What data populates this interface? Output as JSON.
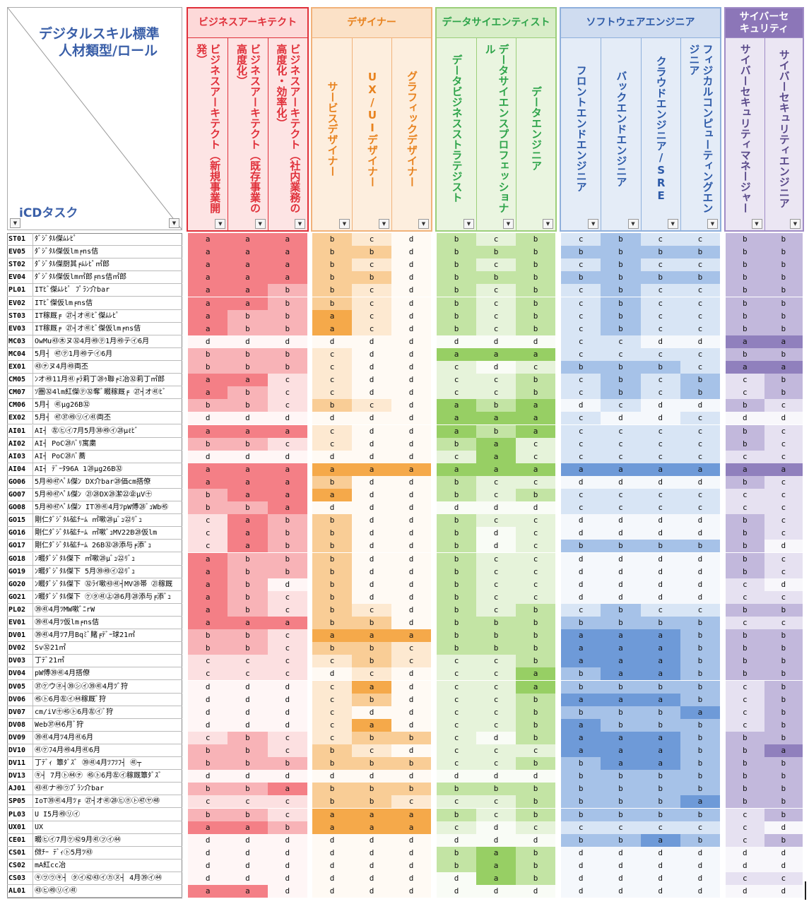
{
  "corner": {
    "title_line1": "デジタルスキル標準",
    "title_line2": "人材類型/ロール",
    "row_label": "iCDタスク"
  },
  "groups": [
    {
      "name": "ビジネスアーキテクト",
      "color": "#e0303a",
      "head_bg": "#fde4e4",
      "border": "#e0303a",
      "title_bg": "#fdd9d9",
      "roles": [
        "ビジネスアーキテクト（新規事業開発）",
        "ビジネスアーキテクト（既存事業の高度化）",
        "ビジネスアーキテクト（社内業務の高度化・効率化）"
      ]
    },
    {
      "name": "デザイナー",
      "color": "#e8821e",
      "head_bg": "#fdeede",
      "border": "#f1b27a",
      "title_bg": "#fbe1c7",
      "roles": [
        "サービスデザイナー",
        "UX/UIデザイナー",
        "グラフィックデザイナー"
      ]
    },
    {
      "name": "データサイエンティスト",
      "color": "#2ea44a",
      "head_bg": "#eaf5e0",
      "border": "#9ccf7a",
      "title_bg": "#d8edc8",
      "roles": [
        "データビジネスストラテジスト",
        "データサイエンスプロフェッショナル",
        "データエンジニア"
      ]
    },
    {
      "name": "ソフトウェアエンジニア",
      "color": "#2d5aa8",
      "head_bg": "#e4ecf7",
      "border": "#8fb0dc",
      "title_bg": "#cfdcf0",
      "roles": [
        "フロントエンドエンジニア",
        "バックエンドエンジニア",
        "クラウドエンジニア/SRE",
        "フィジカルコンピューティングエンジニア"
      ]
    },
    {
      "name": "サイバーセキュリティ",
      "color": "#ffffff",
      "head_bg": "#ebe6f3",
      "border": "#a08cc6",
      "title_bg": "#8c76b8",
      "roles": [
        "サイバーセキュリティマネージャー",
        "サイバーセキュリティエンジニア"
      ]
    }
  ],
  "level_colors": {
    "biz": {
      "a": "#f47f86",
      "b": "#f8b3b7",
      "c": "#fce0e1",
      "d": "#fff6f6"
    },
    "des": {
      "a": "#f5a94a",
      "b": "#f9cd96",
      "c": "#fde9d1",
      "d": "#fffaf4"
    },
    "ds": {
      "a": "#97cf64",
      "b": "#c3e4a4",
      "c": "#e6f3da",
      "d": "#f9fcf6"
    },
    "sw": {
      "a": "#6e9ad8",
      "b": "#a6c2e8",
      "c": "#d8e5f5",
      "d": "#f5f8fc"
    },
    "sec": {
      "a": "#9080bd",
      "b": "#c2b8dc",
      "c": "#e6e1f1",
      "d": "#f8f7fb"
    }
  },
  "rows": [
    {
      "id": "ST01",
      "name": "ﾀﾞｼﾞﾀﾙ傑ﾑﾚﾋﾟ",
      "v": [
        "a",
        "a",
        "a",
        "b",
        "c",
        "d",
        "b",
        "c",
        "b",
        "c",
        "b",
        "c",
        "c",
        "b",
        "b"
      ]
    },
    {
      "id": "EV05",
      "name": "ﾀﾞｼﾞﾀﾙ傑仮lm╒ns佶",
      "v": [
        "a",
        "a",
        "a",
        "b",
        "b",
        "d",
        "b",
        "b",
        "b",
        "b",
        "b",
        "b",
        "b",
        "b",
        "b"
      ]
    },
    {
      "id": "ST02",
      "name": "ﾀﾞｼﾞﾀﾙ傑厨其╒ﾑﾚﾋﾟ㎡郎",
      "v": [
        "a",
        "a",
        "a",
        "b",
        "c",
        "d",
        "b",
        "c",
        "b",
        "c",
        "b",
        "c",
        "c",
        "b",
        "b"
      ]
    },
    {
      "id": "EV04",
      "name": "ﾀﾞｼﾞﾀﾙ傑仮lm㎡郎╒ns佶㎡郎",
      "v": [
        "a",
        "a",
        "a",
        "b",
        "b",
        "d",
        "b",
        "b",
        "b",
        "b",
        "b",
        "b",
        "b",
        "b",
        "b"
      ]
    },
    {
      "id": "PL01",
      "name": "ITﾋﾞ傑ﾑﾚﾋﾟ ﾌﾟﾗﾝ介bar",
      "v": [
        "a",
        "a",
        "b",
        "b",
        "c",
        "d",
        "b",
        "c",
        "b",
        "c",
        "b",
        "c",
        "c",
        "b",
        "b"
      ]
    },
    {
      "id": "EV02",
      "name": "ITﾋﾞ傑仮lm╒ns佶",
      "v": [
        "a",
        "a",
        "b",
        "b",
        "c",
        "d",
        "b",
        "c",
        "b",
        "c",
        "b",
        "c",
        "c",
        "b",
        "b"
      ]
    },
    {
      "id": "ST03",
      "name": "IT稼厩╒ ㉗┤オ㊶ﾋﾞ傑ﾑﾚﾋﾟ",
      "v": [
        "a",
        "b",
        "b",
        "a",
        "c",
        "d",
        "b",
        "c",
        "b",
        "c",
        "b",
        "c",
        "c",
        "b",
        "b"
      ]
    },
    {
      "id": "EV03",
      "name": "IT稼厩╒ ㉗┤オ㊶ﾋﾞ傑仮lm╒ns佶",
      "v": [
        "a",
        "b",
        "b",
        "a",
        "c",
        "d",
        "b",
        "c",
        "b",
        "c",
        "b",
        "c",
        "c",
        "b",
        "b"
      ]
    },
    {
      "id": "MC03",
      "name": "OwMu㊸㊍ヌ㉜4月㊾㋢1月㊾テ㋑6月",
      "v": [
        "d",
        "d",
        "d",
        "d",
        "d",
        "d",
        "d",
        "d",
        "d",
        "c",
        "c",
        "d",
        "d",
        "a",
        "a"
      ]
    },
    {
      "id": "MC04",
      "name": "5月┤ ㊼㋢1月㊾テ㋑6月",
      "v": [
        "b",
        "b",
        "b",
        "c",
        "d",
        "d",
        "a",
        "a",
        "a",
        "c",
        "c",
        "c",
        "c",
        "b",
        "b"
      ]
    },
    {
      "id": "EX01",
      "name": "㊸㋠ヌ4月㊾両丕",
      "v": [
        "b",
        "b",
        "b",
        "c",
        "d",
        "d",
        "c",
        "d",
        "c",
        "b",
        "b",
        "b",
        "c",
        "a",
        "a"
      ]
    },
    {
      "id": "CM05",
      "name": "ﾝオ㊾11月㊶╒ﾗ莉丁㉘ｩ聯╒ﾐ冶㉜莉丁㎡郎",
      "v": [
        "a",
        "a",
        "c",
        "c",
        "d",
        "d",
        "c",
        "c",
        "b",
        "c",
        "b",
        "c",
        "b",
        "c",
        "b"
      ]
    },
    {
      "id": "CM07",
      "name": "ｿ圏㉜4lm紅傑㋢㉜奪ﾞ畷稼厩╒ ㉗┤オ㊶ﾋﾞ",
      "v": [
        "a",
        "b",
        "c",
        "c",
        "d",
        "d",
        "c",
        "c",
        "b",
        "c",
        "b",
        "c",
        "b",
        "c",
        "b"
      ]
    },
    {
      "id": "CM06",
      "name": "5月┤ ㊶μg26B㉜",
      "v": [
        "b",
        "b",
        "c",
        "b",
        "c",
        "d",
        "a",
        "b",
        "a",
        "d",
        "c",
        "d",
        "d",
        "b",
        "c"
      ]
    },
    {
      "id": "EX02",
      "name": "5月┤ ㊼㊲㊾㋷㋑㊶両丕",
      "v": [
        "d",
        "d",
        "d",
        "d",
        "d",
        "d",
        "a",
        "a",
        "a",
        "c",
        "d",
        "d",
        "c",
        "d",
        "d"
      ]
    },
    {
      "id": "AI01",
      "name": "AI┤ ㊧㋪㋑7月5月㊳㊾㋑㉘μℓﾋﾞ",
      "v": [
        "a",
        "a",
        "a",
        "c",
        "d",
        "d",
        "a",
        "b",
        "a",
        "c",
        "c",
        "c",
        "c",
        "b",
        "c"
      ]
    },
    {
      "id": "AI02",
      "name": "AI┤ PoC㉘ﾊﾞﾘ寓粛",
      "v": [
        "b",
        "b",
        "c",
        "c",
        "d",
        "d",
        "b",
        "a",
        "c",
        "c",
        "c",
        "c",
        "c",
        "b",
        "c"
      ]
    },
    {
      "id": "AI03",
      "name": "AI┤ PoC㉘ﾊﾞ蕎",
      "v": [
        "d",
        "d",
        "d",
        "d",
        "d",
        "d",
        "c",
        "a",
        "c",
        "c",
        "c",
        "c",
        "c",
        "c",
        "c"
      ]
    },
    {
      "id": "AI04",
      "name": "AI┤ ﾃﾞｰﾀ96A 1㉘μg26B㉜",
      "v": [
        "a",
        "a",
        "a",
        "a",
        "a",
        "a",
        "a",
        "a",
        "a",
        "a",
        "a",
        "a",
        "a",
        "a",
        "a"
      ]
    },
    {
      "id": "GO06",
      "name": "5月㊵㊼ﾍﾟﾙ傑ﾝ DX介bar㉘価cm搭僚",
      "v": [
        "a",
        "a",
        "a",
        "b",
        "d",
        "d",
        "b",
        "c",
        "c",
        "d",
        "d",
        "d",
        "d",
        "b",
        "c"
      ]
    },
    {
      "id": "GO07",
      "name": "5月㊵㊼ﾍﾟﾙ傑ﾝ ㉑㉘DX㉘潔㉒㊭μV㊉",
      "v": [
        "b",
        "a",
        "a",
        "a",
        "d",
        "d",
        "b",
        "c",
        "b",
        "c",
        "c",
        "c",
        "c",
        "c",
        "c"
      ]
    },
    {
      "id": "GO08",
      "name": "5月㊵㊼ﾍﾟﾙ傑ﾝ IT㊴㊶4月ﾂpW傅㉘ﾞｭWb㊺",
      "v": [
        "b",
        "b",
        "a",
        "d",
        "d",
        "d",
        "d",
        "d",
        "d",
        "c",
        "c",
        "c",
        "c",
        "c",
        "c"
      ]
    },
    {
      "id": "GO15",
      "name": "剛仁ﾀﾞｼﾞﾀﾙ砿ﾁｰﾑ ㎡嗽㉘μﾞｭ㉒ﾘﾞｭ",
      "v": [
        "c",
        "a",
        "b",
        "b",
        "d",
        "d",
        "b",
        "c",
        "c",
        "d",
        "d",
        "d",
        "d",
        "b",
        "c"
      ]
    },
    {
      "id": "GO16",
      "name": "剛仁ﾀﾞｼﾞﾀﾙ砿ﾁｰﾑ ㎡嗽ﾞｭMV22B㉘仮lm",
      "v": [
        "c",
        "a",
        "b",
        "b",
        "d",
        "d",
        "b",
        "d",
        "c",
        "d",
        "d",
        "d",
        "d",
        "b",
        "c"
      ]
    },
    {
      "id": "GO17",
      "name": "剛仁ﾀﾞｼﾞﾀﾙ砿ﾁｰﾑ 26B㉜㉘添与╒添ﾞｭ",
      "v": [
        "c",
        "a",
        "b",
        "b",
        "d",
        "d",
        "b",
        "d",
        "c",
        "b",
        "b",
        "b",
        "b",
        "b",
        "d"
      ]
    },
    {
      "id": "GO18",
      "name": "ﾝ畷ﾀﾞｼﾞﾀﾙ傑下 ㎡嗽㉘μﾞｭ㉒ﾘﾞｭ",
      "v": [
        "a",
        "b",
        "b",
        "b",
        "d",
        "d",
        "b",
        "c",
        "c",
        "d",
        "d",
        "d",
        "d",
        "b",
        "c"
      ]
    },
    {
      "id": "GO19",
      "name": "ﾝ畷ﾀﾞｼﾞﾀﾙ傑下 5月㊴㊾㋑㉒ﾘﾞｭ",
      "v": [
        "a",
        "b",
        "b",
        "b",
        "d",
        "d",
        "b",
        "c",
        "c",
        "d",
        "d",
        "d",
        "d",
        "b",
        "c"
      ]
    },
    {
      "id": "GO20",
      "name": "ﾝ畷ﾀﾞｼﾞﾀﾙ傑下 ㉜ﾗｲ嗽㊸㊶┤MV㉘帯 ㉑稼厩",
      "v": [
        "a",
        "b",
        "d",
        "b",
        "d",
        "d",
        "b",
        "c",
        "c",
        "d",
        "d",
        "d",
        "d",
        "c",
        "d"
      ]
    },
    {
      "id": "GO21",
      "name": "ﾝ畷ﾀﾞｼﾞﾀﾙ傑下 ㋘㋟㊶㊤㉘6月㉘添与╒添ﾞｭ",
      "v": [
        "a",
        "b",
        "c",
        "b",
        "d",
        "d",
        "b",
        "c",
        "c",
        "d",
        "d",
        "d",
        "d",
        "c",
        "c"
      ]
    },
    {
      "id": "PL02",
      "name": "㊴㊶4月ﾂMW嗽ﾞﾆrW",
      "v": [
        "a",
        "b",
        "c",
        "b",
        "c",
        "d",
        "b",
        "c",
        "b",
        "c",
        "b",
        "c",
        "c",
        "b",
        "b"
      ]
    },
    {
      "id": "EV01",
      "name": "㊴㊶4月ﾂ仮lm╒ns佶",
      "v": [
        "a",
        "a",
        "a",
        "b",
        "b",
        "d",
        "b",
        "b",
        "b",
        "b",
        "b",
        "b",
        "b",
        "c",
        "c"
      ]
    },
    {
      "id": "DV01",
      "name": "㊴㊶4月ﾂ7月Bqﾐﾞ賭╒ﾃﾞｰ球21㎡",
      "v": [
        "b",
        "b",
        "c",
        "a",
        "a",
        "a",
        "b",
        "b",
        "b",
        "a",
        "a",
        "a",
        "b",
        "b",
        "b"
      ]
    },
    {
      "id": "DV02",
      "name": "Sv㉜21㎡",
      "v": [
        "b",
        "b",
        "c",
        "b",
        "b",
        "c",
        "b",
        "b",
        "b",
        "a",
        "a",
        "a",
        "b",
        "b",
        "b"
      ]
    },
    {
      "id": "DV03",
      "name": "丁ﾃﾞ21㎡",
      "v": [
        "c",
        "c",
        "c",
        "c",
        "b",
        "c",
        "c",
        "c",
        "b",
        "a",
        "a",
        "a",
        "b",
        "b",
        "b"
      ]
    },
    {
      "id": "DV04",
      "name": "pW傅㊴㊶4月搭僚",
      "v": [
        "c",
        "c",
        "c",
        "d",
        "c",
        "d",
        "c",
        "c",
        "a",
        "b",
        "a",
        "a",
        "b",
        "b",
        "b"
      ]
    },
    {
      "id": "DV05",
      "name": "㊲㋘ウ㋧┤㊴㋛㋑㊴㊶4月ﾂﾞ狩",
      "v": [
        "d",
        "d",
        "d",
        "c",
        "a",
        "d",
        "c",
        "c",
        "a",
        "b",
        "b",
        "b",
        "b",
        "c",
        "b"
      ]
    },
    {
      "id": "DV06",
      "name": "㊺㋣6月㊧㋑㊹稼厩ﾞ狩",
      "v": [
        "d",
        "d",
        "d",
        "c",
        "b",
        "d",
        "c",
        "c",
        "b",
        "a",
        "a",
        "a",
        "b",
        "c",
        "b"
      ]
    },
    {
      "id": "DV07",
      "name": "cm/iV㊉㊺㋣6月㊧㋑ﾞ狩",
      "v": [
        "d",
        "d",
        "d",
        "c",
        "d",
        "d",
        "c",
        "c",
        "b",
        "b",
        "b",
        "b",
        "a",
        "c",
        "b"
      ]
    },
    {
      "id": "DV08",
      "name": "Web㊲㊹6月ﾞ狩",
      "v": [
        "d",
        "d",
        "d",
        "c",
        "a",
        "d",
        "c",
        "c",
        "b",
        "a",
        "b",
        "b",
        "b",
        "c",
        "b"
      ]
    },
    {
      "id": "DV09",
      "name": "㊴㊶4月ﾂ4月㊶6月",
      "v": [
        "c",
        "b",
        "c",
        "c",
        "b",
        "b",
        "c",
        "d",
        "b",
        "a",
        "a",
        "a",
        "b",
        "b",
        "b"
      ]
    },
    {
      "id": "DV10",
      "name": "㊶㋘ﾌ4月㊾4月㊶6月",
      "v": [
        "b",
        "b",
        "c",
        "b",
        "c",
        "d",
        "c",
        "c",
        "c",
        "a",
        "a",
        "a",
        "b",
        "b",
        "a"
      ]
    },
    {
      "id": "DV11",
      "name": "丁ﾃﾞｨ 簟ﾀﾞｽﾞ ㊴㊶4月ﾂﾌﾂﾌ┤ ㊶┬",
      "v": [
        "b",
        "b",
        "b",
        "b",
        "b",
        "b",
        "c",
        "c",
        "b",
        "b",
        "a",
        "a",
        "b",
        "b",
        "b"
      ]
    },
    {
      "id": "DV13",
      "name": "㋖┤ 7月㋣㊹㋠ ㊺㋣6月㊧㋑稼厩簟ﾀﾞｽﾞ",
      "v": [
        "d",
        "d",
        "d",
        "d",
        "d",
        "d",
        "d",
        "d",
        "d",
        "b",
        "b",
        "b",
        "b",
        "b",
        "b"
      ]
    },
    {
      "id": "AJ01",
      "name": "㊸㊶ナ㊾㋒ﾌﾟﾗﾝ介bar",
      "v": [
        "b",
        "b",
        "a",
        "b",
        "b",
        "b",
        "b",
        "b",
        "b",
        "b",
        "b",
        "b",
        "b",
        "b",
        "b"
      ]
    },
    {
      "id": "SP05",
      "name": "IoT㊴㊶4月ﾂ╒ ㉗┤オ㊶㉘㋪㋭㋣㊼㋳㊽",
      "v": [
        "c",
        "c",
        "c",
        "b",
        "b",
        "c",
        "c",
        "c",
        "b",
        "b",
        "b",
        "b",
        "a",
        "b",
        "b"
      ]
    },
    {
      "id": "PL03",
      "name": "U I5月㊾㋷㋑",
      "v": [
        "b",
        "b",
        "c",
        "a",
        "a",
        "a",
        "b",
        "c",
        "b",
        "b",
        "b",
        "b",
        "b",
        "c",
        "b"
      ]
    },
    {
      "id": "UX01",
      "name": "UX",
      "v": [
        "a",
        "a",
        "b",
        "a",
        "a",
        "a",
        "c",
        "d",
        "c",
        "c",
        "c",
        "c",
        "c",
        "c",
        "d"
      ]
    },
    {
      "id": "CE01",
      "name": "畷㋪㋑7月㋘㊷9月㊶㋫㋑㊹",
      "v": [
        "d",
        "d",
        "d",
        "d",
        "d",
        "d",
        "d",
        "d",
        "d",
        "b",
        "b",
        "a",
        "b",
        "c",
        "b"
      ]
    },
    {
      "id": "CS01",
      "name": "傚ﾁｰ ﾃﾞｨ㋣5月ﾂ㊸",
      "v": [
        "d",
        "d",
        "d",
        "d",
        "d",
        "d",
        "b",
        "a",
        "b",
        "d",
        "d",
        "d",
        "d",
        "d",
        "d"
      ]
    },
    {
      "id": "CS02",
      "name": "mA紅cc冶",
      "v": [
        "d",
        "d",
        "d",
        "d",
        "d",
        "d",
        "b",
        "a",
        "b",
        "d",
        "d",
        "d",
        "d",
        "d",
        "d"
      ]
    },
    {
      "id": "CS03",
      "name": "㋖㋻㋒㋖┤ ㋟㋑㊷㊸㋑㋕㋦┤ 4月㊴㋑㊹",
      "v": [
        "d",
        "d",
        "d",
        "d",
        "d",
        "d",
        "d",
        "a",
        "b",
        "d",
        "d",
        "d",
        "d",
        "c",
        "c"
      ]
    },
    {
      "id": "AL01",
      "name": "㊸㋪㊾㋷㋑㊶",
      "v": [
        "a",
        "a",
        "d",
        "d",
        "d",
        "d",
        "d",
        "d",
        "d",
        "d",
        "d",
        "d",
        "d",
        "d",
        "d"
      ]
    }
  ]
}
